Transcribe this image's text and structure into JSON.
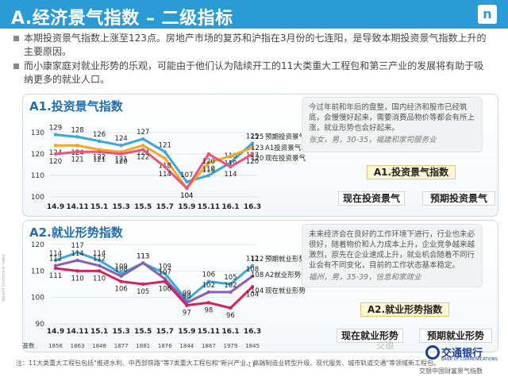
{
  "header": {
    "title": "A.经济景气指数 – 二级指标",
    "logo": "n",
    "bg_color": "#2b9bd6"
  },
  "bullets": [
    "本期投资景气指数上涨至123点。房地产市场的复苏和沪指在3月份的七连阳，是导致本期投资景气指数上升的主要原因。",
    "而小康家庭对就业形势的乐观，可能由于他们认为陆续开工的11大类重大工程包和第三产业的发展将有助于吸纳更多的就业人口。"
  ],
  "chart_data": [
    {
      "type": "line",
      "title": "A1.投资景气指数",
      "categories": [
        "14.9",
        "14.11",
        "15.1",
        "15.3",
        "15.5",
        "15.7",
        "15.9",
        "15.11",
        "16.1",
        "16.3"
      ],
      "ylim": [
        100,
        130
      ],
      "yticks": [
        100,
        110,
        120,
        130
      ],
      "series": [
        {
          "name": "预期投资景气",
          "color": "#3aa8d8",
          "values": [
            129,
            128,
            126,
            124,
            127,
            121,
            107,
            110,
            116,
            125
          ]
        },
        {
          "name": "A1投资景气状况指数",
          "color": "#f5a623",
          "values": [
            124,
            124,
            122,
            121,
            124,
            118,
            104,
            116,
            119,
            123
          ]
        },
        {
          "name": "现在投资景气",
          "color": "#e8557b",
          "values": [
            120,
            121,
            121,
            120,
            122,
            114,
            104,
            120,
            114,
            120
          ]
        }
      ]
    },
    {
      "type": "line",
      "title": "A2.就业形势指数",
      "categories": [
        "14.9",
        "14.11",
        "15.1",
        "15.3",
        "15.5",
        "15.7",
        "15.9",
        "15.11",
        "16.1",
        "16.3"
      ],
      "ylim": [
        90,
        120
      ],
      "yticks": [
        90,
        100,
        110,
        120
      ],
      "series": [
        {
          "name": "预期就业形势",
          "color": "#3aa8d8",
          "values": [
            114,
            117,
            114,
            109,
            113,
            109,
            99,
            106,
            105,
            112
          ]
        },
        {
          "name": "A2就业形势指数",
          "color": "#8a5fb0",
          "values": [
            112,
            114,
            112,
            108,
            113,
            107,
            98,
            102,
            102,
            108
          ]
        },
        {
          "name": "现在就业形势",
          "color": "#d4235a",
          "values": [
            111,
            110,
            110,
            106,
            105,
            106,
            97,
            98,
            96,
            104
          ]
        }
      ],
      "base_label": "基数",
      "base_values": [
        "1856",
        "1863",
        "1848",
        "1877",
        "1881",
        "1876",
        "1844",
        "1867",
        "1979",
        "1845"
      ]
    }
  ],
  "notes": {
    "n1": {
      "text": "今过年前和年后的盘整，国内经济和股市已经筑底，会慢慢好起来，需要消费品物价等都会有所上涨，就业形势也会好起来。",
      "source": "张女，男，30-35，福建和家司服务业"
    },
    "n2": {
      "text": "未来经济会在良好的工作环境下进行，行业也未必很好，随着物价和人力成本上升，企业竞争越来越激烈，原先在企业速成上升，就业机会随着不同行业会有不同变化，目前的工作状态基本稳定。",
      "source": "福州，男，35-39，信息和家政业"
    }
  },
  "boxes1": {
    "main": "A1.投资景气指数",
    "left": "现在投资景气",
    "right": "预期投资景气"
  },
  "boxes2": {
    "main": "A2.就业形势指数",
    "left": "现在就业形势",
    "right": "预期就业形势"
  },
  "footer": "注：11大类重大工程包包括\"推进水利、中西部铁路\"等7类重大工程包和\"新兴产业、高端制造业转型升级、现代服务、城市轨道交通\"等领域新工程包。",
  "page_number": "11",
  "bank": {
    "name": "交通银行",
    "en": "BANK OF COMMUNICATIONS",
    "sub": "交银中国财富景气指数"
  },
  "watermark": "交银",
  "side_text": "Wealth Sentiment Index"
}
